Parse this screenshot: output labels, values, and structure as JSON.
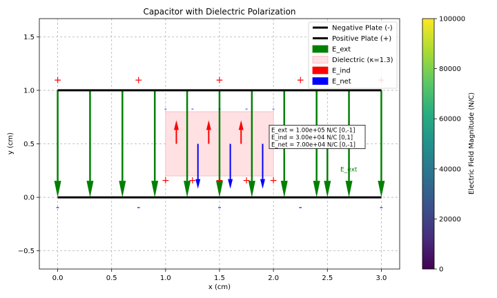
{
  "chart_data": {
    "type": "line",
    "title": "Capacitor with Dielectric Polarization",
    "xlabel": "x (cm)",
    "ylabel": "y (cm)",
    "xlim": [
      -0.17,
      3.17
    ],
    "ylim": [
      -0.67,
      1.67
    ],
    "xticks": [
      0.0,
      0.5,
      1.0,
      1.5,
      2.0,
      2.5,
      3.0
    ],
    "xtick_labels": [
      "0.0",
      "0.5",
      "1.0",
      "1.5",
      "2.0",
      "2.5",
      "3.0"
    ],
    "yticks": [
      -0.5,
      0.0,
      0.5,
      1.0,
      1.5
    ],
    "ytick_labels": [
      "−0.5",
      "0.0",
      "0.5",
      "1.0",
      "1.5"
    ],
    "grid": true,
    "legend_position": "top-right",
    "legend": [
      {
        "label": "Negative Plate (-)",
        "kind": "line",
        "color": "#000000"
      },
      {
        "label": "Positive Plate (+)",
        "kind": "line",
        "color": "#000000"
      },
      {
        "label": "E_ext",
        "kind": "patch",
        "color": "#008000"
      },
      {
        "label": "Dielectric (κ=1.3)",
        "kind": "patch",
        "color": "#ffe0e3",
        "edge": "#f4b6bc"
      },
      {
        "label": "E_ind",
        "kind": "patch",
        "color": "#ff0000"
      },
      {
        "label": "E_net",
        "kind": "patch",
        "color": "#0000ff"
      }
    ],
    "plates": [
      {
        "name": "Positive Plate (+)",
        "y": 1.0,
        "x": [
          0.0,
          3.0
        ],
        "color": "#000000"
      },
      {
        "name": "Negative Plate (-)",
        "y": 0.0,
        "x": [
          0.0,
          3.0
        ],
        "color": "#000000"
      }
    ],
    "dielectric": {
      "x": [
        1.0,
        2.0
      ],
      "y": [
        0.2,
        0.8
      ],
      "kappa": 1.3,
      "fill": "#ffe0e3",
      "edge": "#f4b6bc"
    },
    "e_ext_arrows": {
      "color": "#008000",
      "y_start": 1.0,
      "y_end": 0.0,
      "x": [
        0.0,
        0.3,
        0.6,
        0.9,
        1.2,
        1.5,
        1.8,
        2.1,
        2.4,
        2.7,
        3.0
      ]
    },
    "e_ext_extra_arrow": {
      "x": 2.5,
      "y_start": 0.55,
      "y_end": 0.0
    },
    "e_ind_arrows": {
      "color": "#ff0000",
      "x": [
        1.1,
        1.4,
        1.7
      ],
      "y_start": 0.5,
      "y_end": 0.72
    },
    "e_net_arrows": {
      "color": "#0000ff",
      "x": [
        1.3,
        1.6,
        1.9
      ],
      "y_start": 0.5,
      "y_end": 0.08
    },
    "plate_charges": {
      "top": {
        "symbol": "+",
        "color": "#ff0000",
        "y": 1.1,
        "x": [
          0.0,
          0.75,
          1.5,
          2.25,
          3.0
        ]
      },
      "bottom": {
        "symbol": "-",
        "color": "#0000ff",
        "y": -0.09,
        "x": [
          0.0,
          0.75,
          1.5,
          2.25,
          3.0
        ]
      }
    },
    "dielectric_charges": {
      "top": {
        "symbol": "-",
        "color": "#0000ff",
        "y": 0.84,
        "x": [
          1.0,
          1.25,
          1.5,
          1.75,
          2.0
        ]
      },
      "bottom": {
        "symbol": "+",
        "color": "#ff0000",
        "y": 0.16,
        "x": [
          1.0,
          1.25,
          1.5,
          1.75,
          2.0
        ]
      }
    },
    "annotation": {
      "lines": [
        "E_ext = 1.00e+05 N/C  [0,-1]",
        "E_ind = 3.00e+04 N/C  [0,1]",
        "E_net = 7.00e+04 N/C  [0,-1]"
      ],
      "x": 1.98,
      "y": 0.61
    },
    "e_ext_label": {
      "text": "E_ext",
      "x": 2.62,
      "y": 0.26
    },
    "colorbar": {
      "label": "Electric Field Magnitude (N/C)",
      "min": 0,
      "max": 100000,
      "ticks": [
        0,
        20000,
        40000,
        60000,
        80000,
        100000
      ],
      "tick_labels": [
        "0",
        "20000",
        "40000",
        "60000",
        "80000",
        "100000"
      ],
      "colormap": "viridis"
    }
  }
}
